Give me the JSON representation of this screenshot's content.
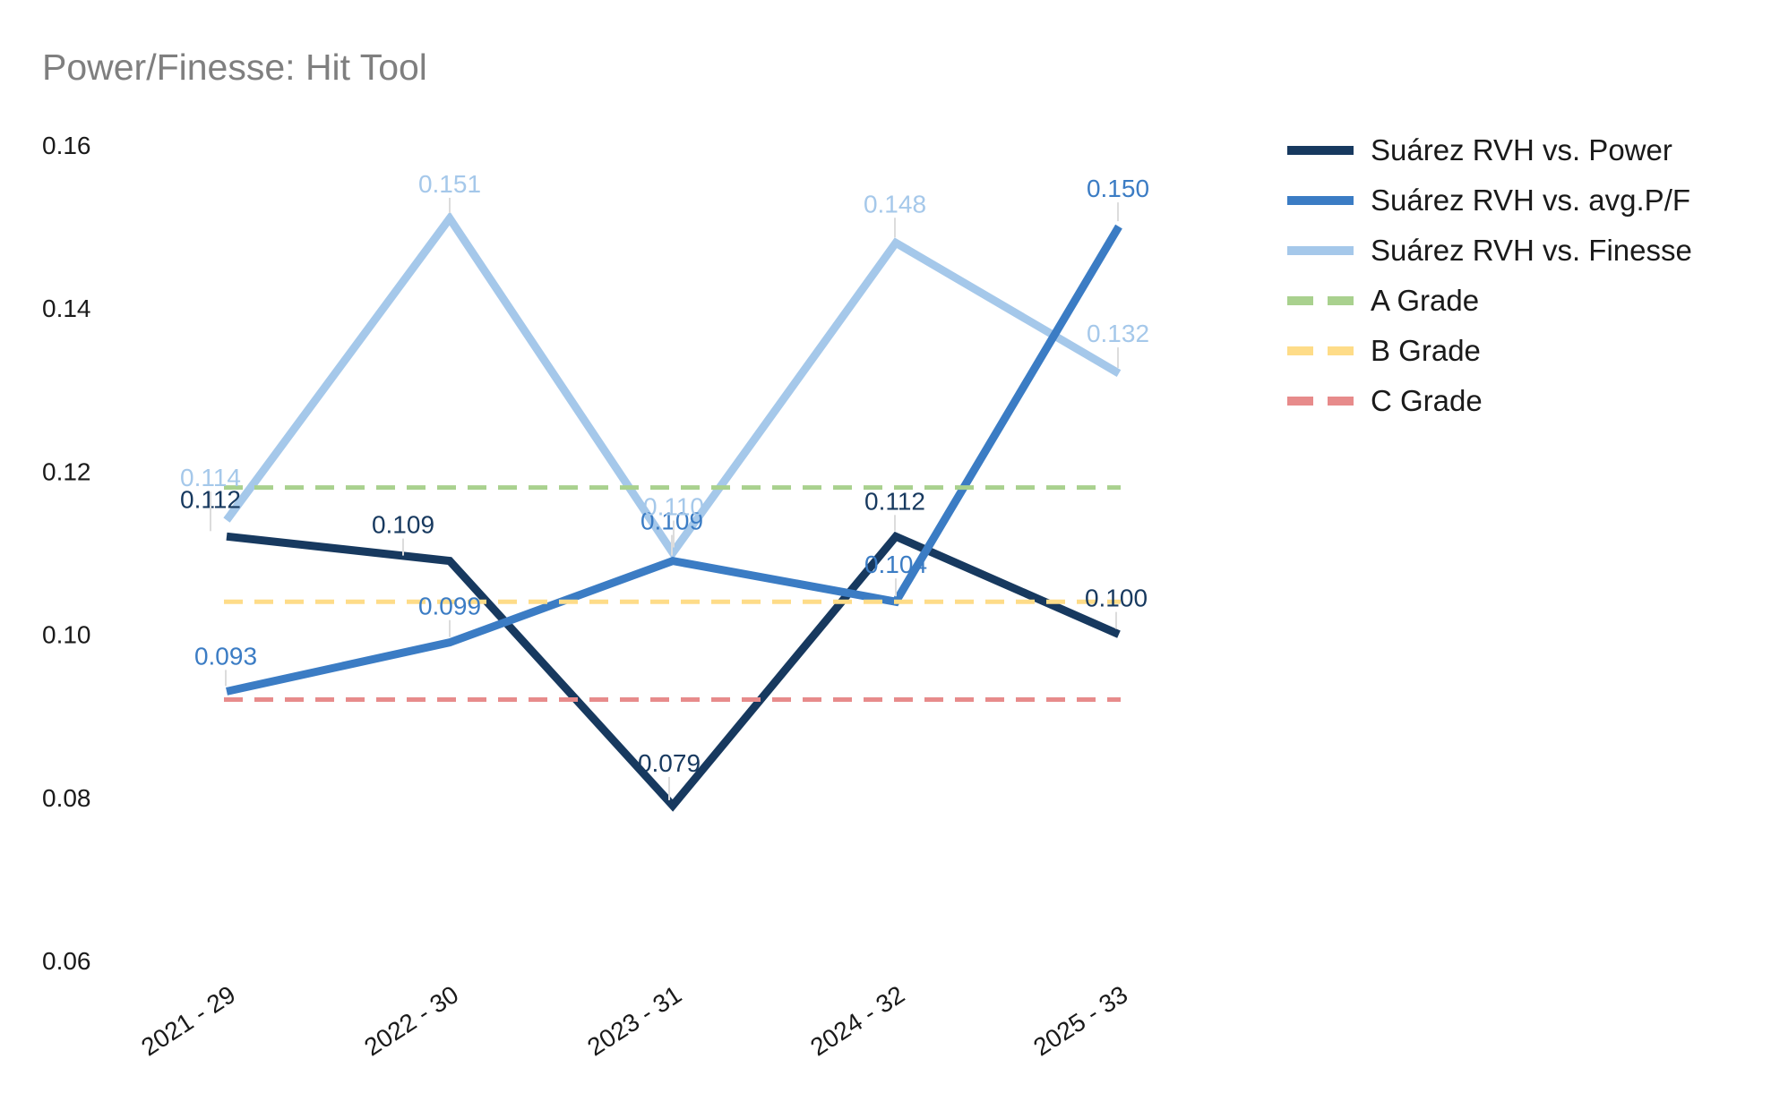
{
  "title": "Power/Finesse: Hit Tool",
  "chart_data": {
    "type": "line",
    "title": "Power/Finesse: Hit Tool",
    "x_categories": [
      "2021 - 29",
      "2022 - 30",
      "2023 - 31",
      "2024 - 32",
      "2025 - 33"
    ],
    "y_axis": {
      "min": 0.06,
      "max": 0.16,
      "tick_labels": [
        "0.16",
        "0.14",
        "0.12",
        "0.10",
        "0.08",
        "0.06"
      ],
      "tick_values": [
        0.16,
        0.14,
        0.12,
        0.1,
        0.08,
        0.06
      ]
    },
    "grid": false,
    "legend_position": "right",
    "series": [
      {
        "name": "Suárez RVH vs. Power",
        "color": "#17395f",
        "values": [
          0.112,
          0.109,
          0.079,
          0.112,
          0.1
        ],
        "labels": [
          "0.112",
          "0.109",
          "0.079",
          "0.112",
          "0.100"
        ],
        "label_dx": [
          -18,
          -52,
          -4,
          -1,
          -3
        ],
        "label_dy": [
          -42,
          -41,
          -48,
          -40,
          -41
        ]
      },
      {
        "name": "Suárez RVH vs. avg.P/F",
        "color": "#3b7cc4",
        "values": [
          0.093,
          0.099,
          0.109,
          0.104,
          0.15
        ],
        "labels": [
          "0.093",
          "0.099",
          "0.109",
          "0.104",
          "0.150"
        ],
        "label_dx": [
          -1,
          0,
          -1,
          0,
          -1
        ],
        "label_dy": [
          -40,
          -41,
          -45,
          -42,
          -43
        ]
      },
      {
        "name": "Suárez RVH vs. Finesse",
        "color": "#a5c8ea",
        "values": [
          0.114,
          0.151,
          0.11,
          0.148,
          0.132
        ],
        "labels": [
          "0.114",
          "0.151",
          "0.110",
          "0.148",
          "0.132"
        ],
        "label_dx": [
          -18,
          0,
          1,
          -1,
          -1
        ],
        "label_dy": [
          -48,
          -39,
          -52,
          -44,
          -45
        ]
      }
    ],
    "grade_lines": [
      {
        "name": "A Grade",
        "color": "#a9d18e",
        "value": 0.118
      },
      {
        "name": "B Grade",
        "color": "#fedc88",
        "value": 0.104
      },
      {
        "name": "C Grade",
        "color": "#e78b8b",
        "value": 0.092
      }
    ]
  }
}
